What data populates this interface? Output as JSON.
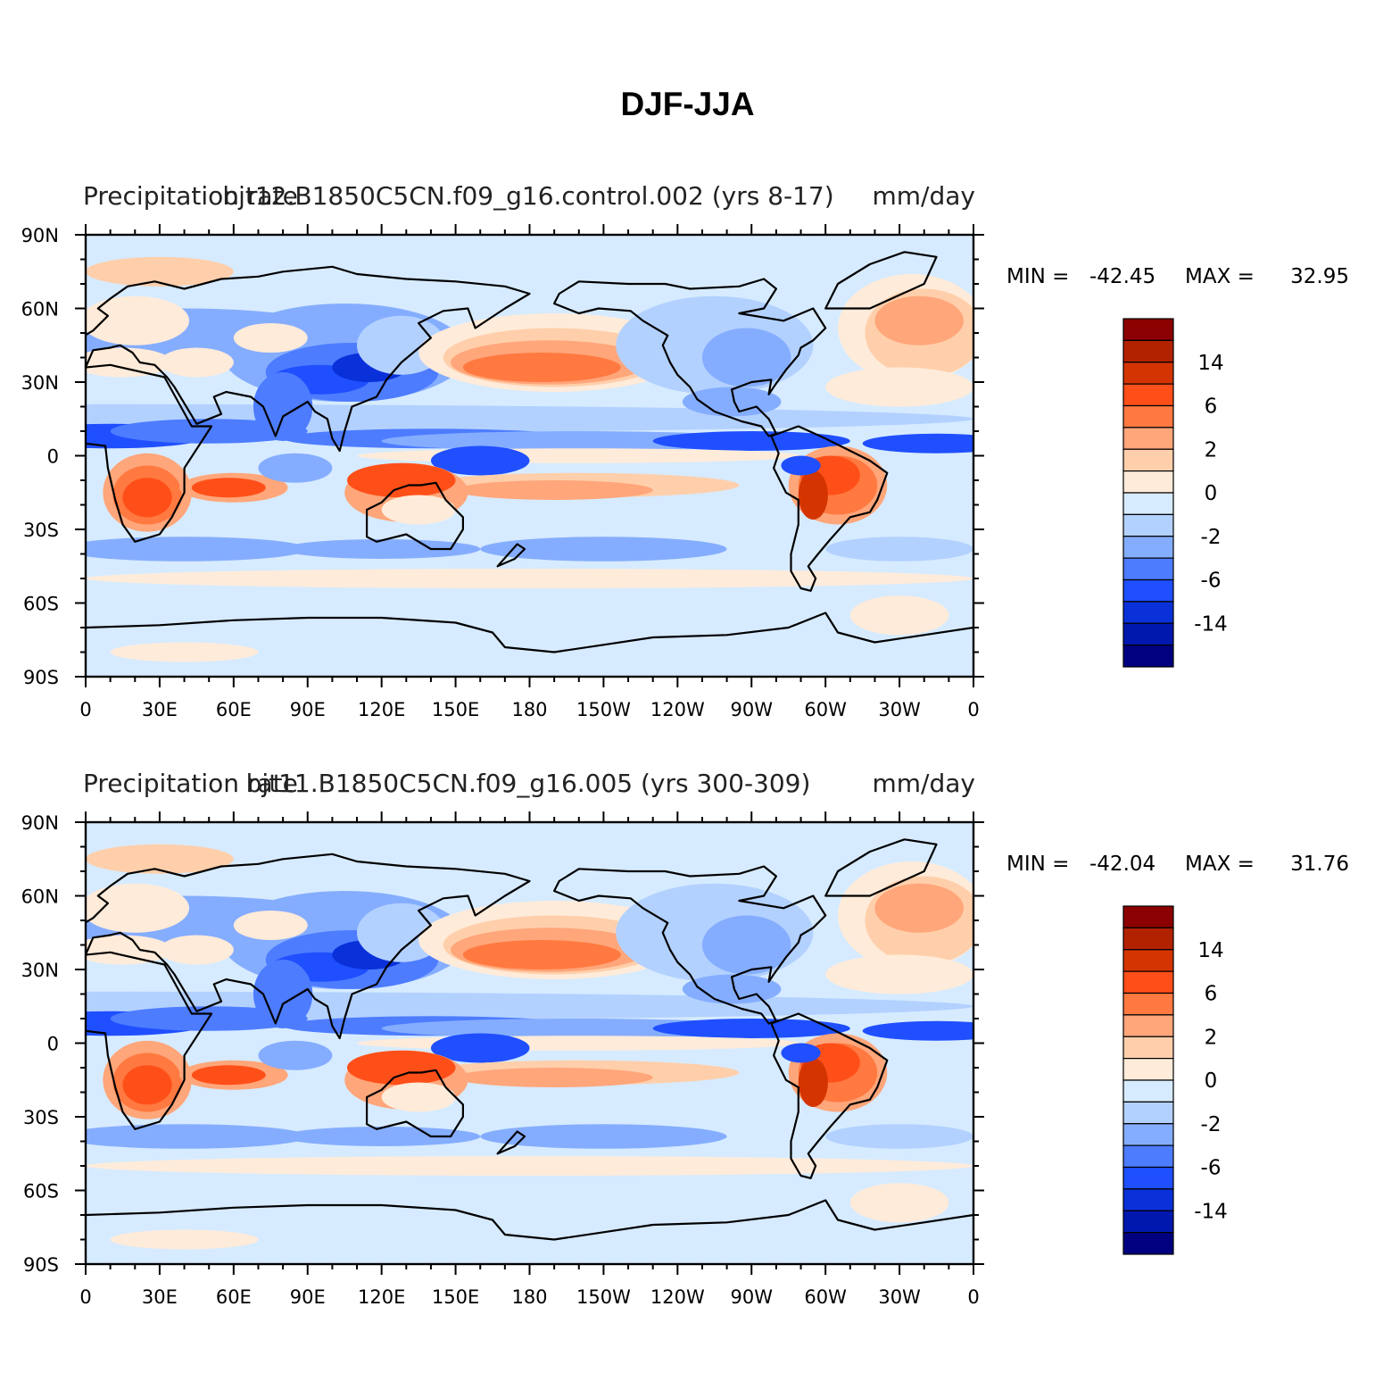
{
  "figure": {
    "title": "DJF-JJA"
  },
  "panels": [
    {
      "left_title": "Precipitation rate",
      "center_title": "bjt12.B1850C5CN.f09_g16.control.002 (yrs 8-17)",
      "right_title": "mm/day",
      "min_label": "MIN =",
      "min_value": "-42.45",
      "max_label": "MAX =",
      "max_value": "32.95"
    },
    {
      "left_title": "Precipitation rate",
      "center_title": "bjt11.B1850C5CN.f09_g16.005 (yrs 300-309)",
      "right_title": "mm/day",
      "min_label": "MIN =",
      "min_value": "-42.04",
      "max_label": "MAX =",
      "max_value": "31.76"
    }
  ],
  "axes": {
    "lat_ticks": [
      "90N",
      "60N",
      "30N",
      "0",
      "30S",
      "60S",
      "90S"
    ],
    "lon_ticks": [
      "0",
      "30E",
      "60E",
      "90E",
      "120E",
      "150E",
      "180",
      "150W",
      "120W",
      "90W",
      "60W",
      "30W",
      "0"
    ]
  },
  "colorbar": {
    "labels": [
      "14",
      "6",
      "2",
      "0",
      "-2",
      "-6",
      "-14"
    ],
    "colors": [
      "#8b0000",
      "#b22200",
      "#d43500",
      "#ff4f19",
      "#ff7940",
      "#ffa67a",
      "#ffcfab",
      "#ffebd9",
      "#d6ebff",
      "#b3d1ff",
      "#85adff",
      "#4d7cff",
      "#1f4fff",
      "#0a31d9",
      "#0018ad",
      "#000080"
    ]
  },
  "chart_data": {
    "type": "heatmap",
    "variable": "Precipitation rate",
    "units": "mm/day",
    "title": "DJF-JJA",
    "x_ticks": [
      "0",
      "30E",
      "60E",
      "90E",
      "120E",
      "150E",
      "180",
      "150W",
      "120W",
      "90W",
      "60W",
      "30W",
      "0"
    ],
    "y_ticks": [
      "90N",
      "60N",
      "30N",
      "0",
      "30S",
      "60S",
      "90S"
    ],
    "colorbar_labels": [
      "14",
      "6",
      "2",
      "0",
      "-2",
      "-6",
      "-14"
    ],
    "series": [
      {
        "name": "bjt12.B1850C5CN.f09_g16.control.002 (yrs 8-17)",
        "min": -42.45,
        "max": 32.95
      },
      {
        "name": "bjt11.B1850C5CN.f09_g16.005 (yrs 300-309)",
        "min": -42.04,
        "max": 31.76
      }
    ]
  }
}
